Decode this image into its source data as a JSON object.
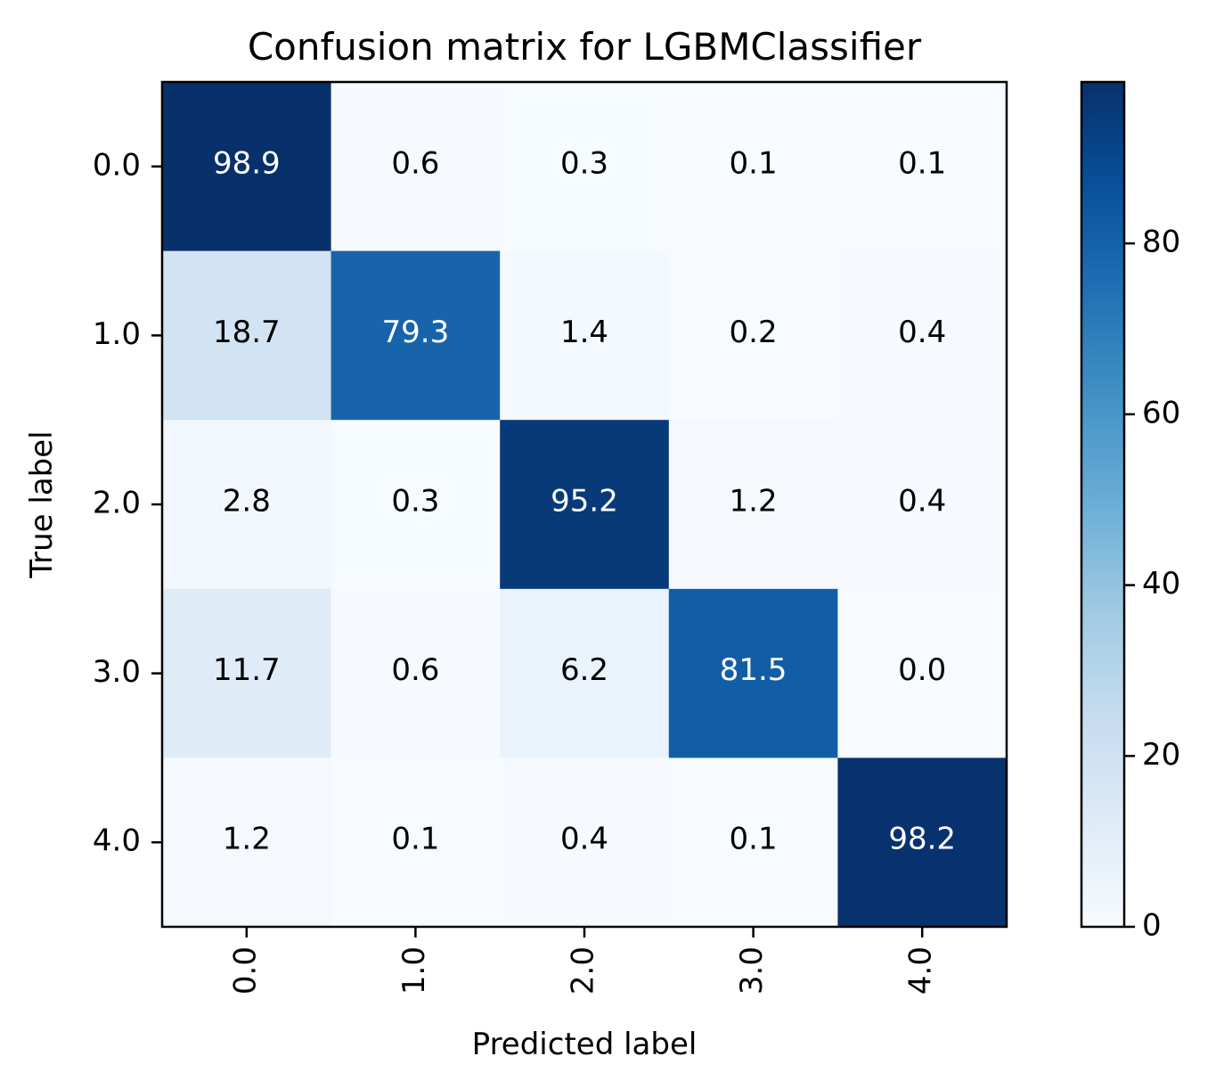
{
  "chart_data": {
    "type": "heatmap",
    "title": "Confusion matrix for LGBMClassifier",
    "xlabel": "Predicted label",
    "ylabel": "True label",
    "x_categories": [
      "0.0",
      "1.0",
      "2.0",
      "3.0",
      "4.0"
    ],
    "y_categories": [
      "0.0",
      "1.0",
      "2.0",
      "3.0",
      "4.0"
    ],
    "values": [
      [
        98.9,
        0.6,
        0.3,
        0.1,
        0.1
      ],
      [
        18.7,
        79.3,
        1.4,
        0.2,
        0.4
      ],
      [
        2.8,
        0.3,
        95.2,
        1.2,
        0.4
      ],
      [
        11.7,
        0.6,
        6.2,
        81.5,
        0.0
      ],
      [
        1.2,
        0.1,
        0.4,
        0.1,
        98.2
      ]
    ],
    "value_labels": [
      [
        "98.9",
        "0.6",
        "0.3",
        "0.1",
        "0.1"
      ],
      [
        "18.7",
        "79.3",
        "1.4",
        "0.2",
        "0.4"
      ],
      [
        "2.8",
        "0.3",
        "95.2",
        "1.2",
        "0.4"
      ],
      [
        "11.7",
        "0.6",
        "6.2",
        "81.5",
        "0.0"
      ],
      [
        "1.2",
        "0.1",
        "0.4",
        "0.1",
        "98.2"
      ]
    ],
    "colormap": "Blues",
    "color_range": [
      0,
      98.9
    ],
    "colorbar_ticks": [
      0,
      20,
      40,
      60,
      80
    ],
    "colorbar_tick_labels": [
      "0",
      "20",
      "40",
      "60",
      "80"
    ],
    "x_tick_rotation": "vertical",
    "grid": false
  }
}
